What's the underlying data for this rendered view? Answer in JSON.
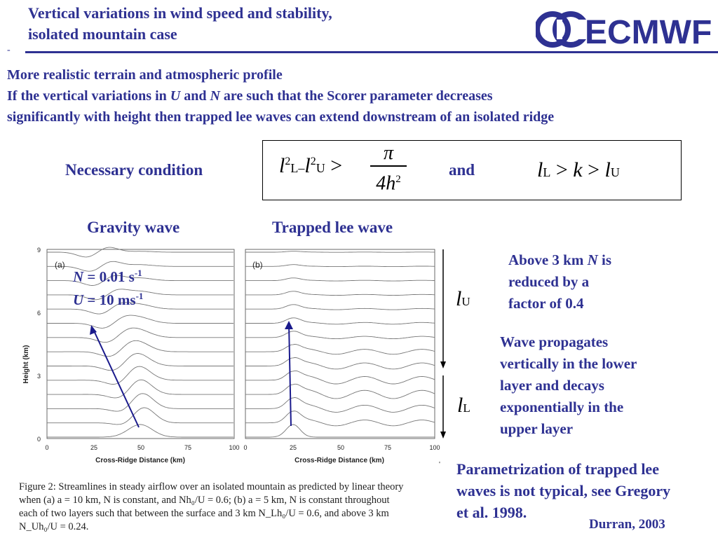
{
  "header": {
    "title_line1": "Vertical variations in wind speed and stability,",
    "title_line2": "isolated mountain case",
    "bullet": "-",
    "logo_text": "ECMWF"
  },
  "intro": {
    "line1": "More realistic terrain and atmospheric profile",
    "line2_a": "If the vertical variations in ",
    "line2_U": "U",
    "line2_b": " and ",
    "line2_N": "N",
    "line2_c": " are such that the Scorer parameter decreases",
    "line3": "significantly with height then trapped lee waves can extend downstream of an isolated ridge"
  },
  "condition": {
    "label": "Necessary condition",
    "and": "and",
    "formula1": {
      "l": "l",
      "sq": "2",
      "L": "L",
      "minus": "–",
      "U": "U",
      "gt": ">",
      "pi": "π",
      "four_h": "4h",
      "h_sq": "2"
    },
    "formula2": {
      "l": "l",
      "L": "L",
      "gt": ">",
      "k": "k",
      "U": "U"
    }
  },
  "panels": {
    "left_label": "Gravity wave",
    "right_label": "Trapped lee wave",
    "panel_a_tag": "(a)",
    "panel_b_tag": "(b)",
    "y_axis_label": "Height (km)",
    "x_axis_label": "Cross-Ridge Distance (km)",
    "y_ticks": [
      "0",
      "3",
      "6",
      "9"
    ],
    "x_ticks": [
      "0",
      "25",
      "50",
      "75",
      "100"
    ],
    "overlay_N": "N",
    "overlay_N_value": " = 0.01 s",
    "overlay_N_exp": "-1",
    "overlay_U": "U",
    "overlay_U_value": " = 10 ms",
    "overlay_U_exp": "-1"
  },
  "right_column": {
    "lU_l": "l",
    "lU_sub": "U",
    "lL_l": "l",
    "lL_sub": "L",
    "above_a": "Above 3 km ",
    "above_N": "N",
    "above_b": " is",
    "above_2": "reduced by a",
    "above_3": "factor of 0.4",
    "wave_1": "Wave propagates",
    "wave_2": "vertically in the lower",
    "wave_3": "layer and decays",
    "wave_4": "exponentially in the",
    "wave_5": "upper layer",
    "param_1": "Parametrization of trapped lee",
    "param_2": "waves is not typical, see Gregory",
    "param_3": "et al. 1998.",
    "credit": "Durran, 2003"
  },
  "caption": {
    "line1": "Figure 2:  Streamlines in steady airflow over an isolated mountain as predicted by linear theory",
    "line2": "when (a) a = 10 km, N is constant, and Nh₀/U = 0.6; (b) a = 5 km, N is constant throughout",
    "line3": "each of two layers such that between the surface and 3 km N_Lh₀/U = 0.6, and above 3 km",
    "line4": "N_Uh₀/U = 0.24."
  },
  "colors": {
    "accent": "#2e3192",
    "arrow": "#1a1a8c"
  }
}
